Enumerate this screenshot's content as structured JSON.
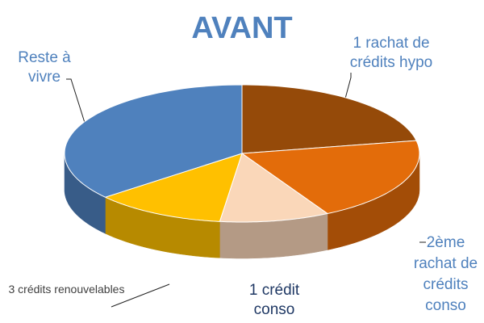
{
  "chart_data": {
    "type": "pie3d",
    "title": "AVANT",
    "categories": [
      "1 rachat de crédits hypo",
      "2ème rachat de crédits conso",
      "1 crédit conso",
      "3 crédits renouvelables",
      "Reste à vivre"
    ],
    "values": [
      22,
      20,
      10,
      12,
      36
    ],
    "colors": [
      "#954a09",
      "#e36c0a",
      "#fad7b9",
      "#ffc000",
      "#4f81bd"
    ]
  }
}
